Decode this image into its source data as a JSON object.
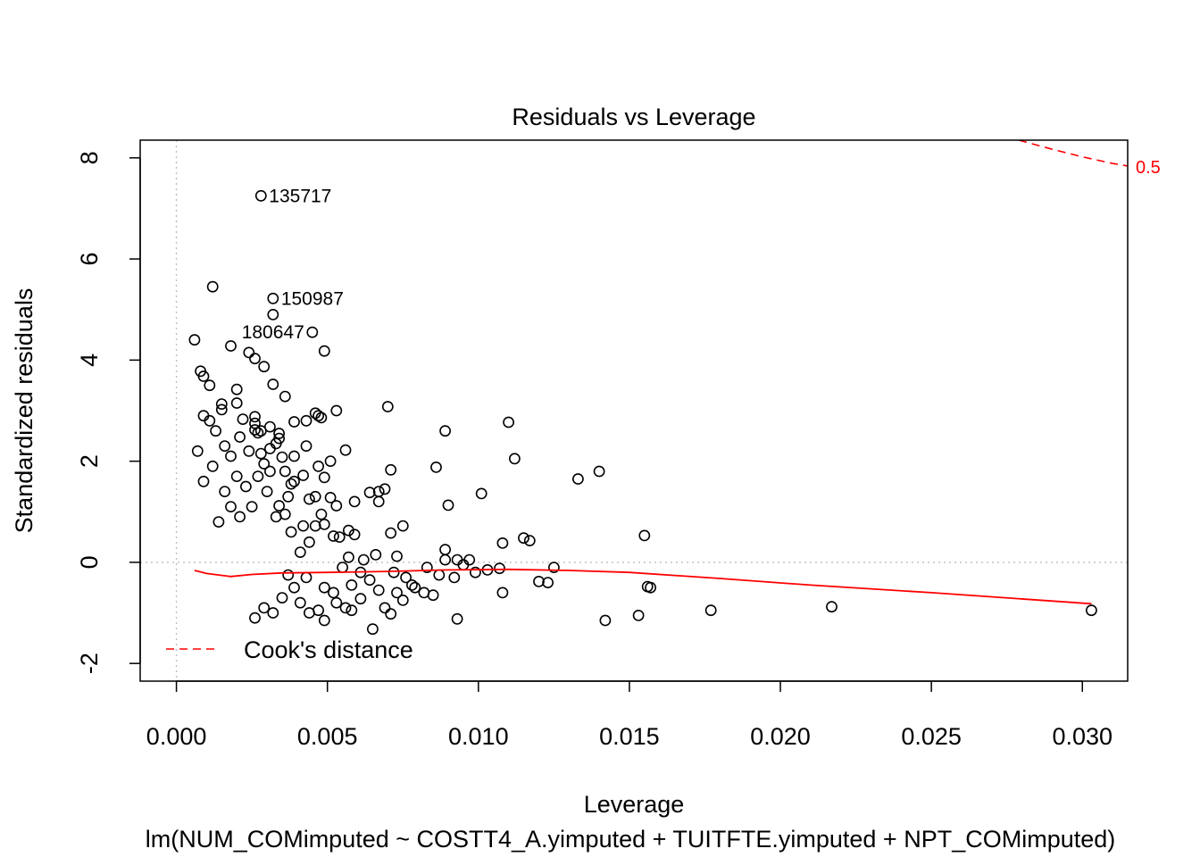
{
  "chart_data": {
    "type": "scatter",
    "title": "Residuals vs Leverage",
    "xlabel": "Leverage",
    "ylabel": "Standardized residuals",
    "subtitle": "lm(NUM_COMimputed ~ COSTT4_A.yimputed + TUITFTE.yimputed + NPT_COMimputed)",
    "xlim": [
      -0.0012,
      0.0315
    ],
    "ylim": [
      -2.35,
      8.35
    ],
    "x_ticks": [
      0.0,
      0.005,
      0.01,
      0.015,
      0.02,
      0.025,
      0.03
    ],
    "x_tick_labels": [
      "0.000",
      "0.005",
      "0.010",
      "0.015",
      "0.020",
      "0.025",
      "0.030"
    ],
    "y_ticks": [
      -2,
      0,
      2,
      4,
      6,
      8
    ],
    "y_tick_labels": [
      "-2",
      "0",
      "2",
      "4",
      "6",
      "8"
    ],
    "reference_lines": {
      "x": 0,
      "y": 0
    },
    "series": [
      {
        "name": "observations",
        "color": "#000000",
        "points": [
          [
            0.0028,
            7.25
          ],
          [
            0.0012,
            5.45
          ],
          [
            0.0032,
            5.22
          ],
          [
            0.0032,
            4.9
          ],
          [
            0.0045,
            4.55
          ],
          [
            0.0006,
            4.4
          ],
          [
            0.0018,
            4.28
          ],
          [
            0.0049,
            4.18
          ],
          [
            0.0024,
            4.15
          ],
          [
            0.0026,
            4.03
          ],
          [
            0.0029,
            3.87
          ],
          [
            0.0008,
            3.78
          ],
          [
            0.0009,
            3.68
          ],
          [
            0.0011,
            3.5
          ],
          [
            0.0032,
            3.52
          ],
          [
            0.0036,
            3.28
          ],
          [
            0.002,
            3.42
          ],
          [
            0.002,
            3.15
          ],
          [
            0.0015,
            3.13
          ],
          [
            0.0015,
            3.02
          ],
          [
            0.007,
            3.08
          ],
          [
            0.0053,
            3.0
          ],
          [
            0.0046,
            2.95
          ],
          [
            0.0047,
            2.9
          ],
          [
            0.0048,
            2.86
          ],
          [
            0.0043,
            2.8
          ],
          [
            0.0039,
            2.78
          ],
          [
            0.0031,
            2.68
          ],
          [
            0.0026,
            2.62
          ],
          [
            0.0027,
            2.56
          ],
          [
            0.0034,
            2.55
          ],
          [
            0.0021,
            2.48
          ],
          [
            0.0028,
            2.6
          ],
          [
            0.0026,
            2.75
          ],
          [
            0.0022,
            2.83
          ],
          [
            0.0026,
            2.88
          ],
          [
            0.011,
            2.77
          ],
          [
            0.0089,
            2.6
          ],
          [
            0.0112,
            2.05
          ],
          [
            0.0056,
            2.22
          ],
          [
            0.0033,
            2.35
          ],
          [
            0.0028,
            2.15
          ],
          [
            0.0035,
            2.08
          ],
          [
            0.0071,
            1.83
          ],
          [
            0.0086,
            1.88
          ],
          [
            0.0064,
            1.38
          ],
          [
            0.0067,
            1.4
          ],
          [
            0.0069,
            1.45
          ],
          [
            0.0101,
            1.36
          ],
          [
            0.0133,
            1.65
          ],
          [
            0.014,
            1.8
          ],
          [
            0.0049,
            1.68
          ],
          [
            0.0042,
            1.72
          ],
          [
            0.0036,
            1.8
          ],
          [
            0.0031,
            1.8
          ],
          [
            0.0038,
            1.55
          ],
          [
            0.0039,
            1.6
          ],
          [
            0.0046,
            1.3
          ],
          [
            0.0044,
            1.25
          ],
          [
            0.0051,
            1.28
          ],
          [
            0.0053,
            1.12
          ],
          [
            0.0059,
            1.2
          ],
          [
            0.0067,
            1.2
          ],
          [
            0.009,
            1.13
          ],
          [
            0.0048,
            0.95
          ],
          [
            0.0034,
            1.12
          ],
          [
            0.0036,
            0.95
          ],
          [
            0.0042,
            0.72
          ],
          [
            0.0046,
            0.72
          ],
          [
            0.0049,
            0.75
          ],
          [
            0.0057,
            0.63
          ],
          [
            0.0059,
            0.55
          ],
          [
            0.0052,
            0.52
          ],
          [
            0.0054,
            0.5
          ],
          [
            0.0071,
            0.58
          ],
          [
            0.0075,
            0.72
          ],
          [
            0.0057,
            0.1
          ],
          [
            0.0062,
            0.05
          ],
          [
            0.0066,
            0.15
          ],
          [
            0.0073,
            0.12
          ],
          [
            0.0089,
            0.25
          ],
          [
            0.0093,
            0.05
          ],
          [
            0.0095,
            -0.05
          ],
          [
            0.0089,
            0.05
          ],
          [
            0.0097,
            0.05
          ],
          [
            0.0107,
            -0.12
          ],
          [
            0.0108,
            0.38
          ],
          [
            0.0115,
            0.48
          ],
          [
            0.0117,
            0.43
          ],
          [
            0.0125,
            -0.1
          ],
          [
            0.0155,
            0.53
          ],
          [
            0.012,
            -0.38
          ],
          [
            0.0123,
            -0.4
          ],
          [
            0.0156,
            -0.48
          ],
          [
            0.0157,
            -0.5
          ],
          [
            0.0108,
            -0.6
          ],
          [
            0.0093,
            -1.12
          ],
          [
            0.0142,
            -1.15
          ],
          [
            0.0153,
            -1.05
          ],
          [
            0.0177,
            -0.95
          ],
          [
            0.0217,
            -0.88
          ],
          [
            0.0303,
            -0.95
          ],
          [
            0.0082,
            -0.6
          ],
          [
            0.0085,
            -0.65
          ],
          [
            0.0079,
            -0.5
          ],
          [
            0.0075,
            -0.75
          ],
          [
            0.0069,
            -0.9
          ],
          [
            0.0071,
            -1.02
          ],
          [
            0.0065,
            -1.32
          ],
          [
            0.0049,
            -1.15
          ],
          [
            0.0061,
            -0.72
          ],
          [
            0.0056,
            -0.9
          ],
          [
            0.0047,
            -0.95
          ],
          [
            0.0044,
            -1.0
          ],
          [
            0.0041,
            -0.8
          ],
          [
            0.0052,
            -0.6
          ],
          [
            0.0058,
            -0.45
          ],
          [
            0.0064,
            -0.35
          ],
          [
            0.0067,
            -0.55
          ],
          [
            0.0072,
            -0.2
          ],
          [
            0.0076,
            -0.3
          ],
          [
            0.0083,
            -0.1
          ],
          [
            0.0087,
            -0.25
          ],
          [
            0.0092,
            -0.3
          ],
          [
            0.0099,
            -0.2
          ],
          [
            0.0103,
            -0.15
          ],
          [
            0.0078,
            -0.45
          ],
          [
            0.0073,
            -0.6
          ],
          [
            0.0061,
            -0.2
          ],
          [
            0.0055,
            -0.1
          ],
          [
            0.0041,
            0.2
          ],
          [
            0.0044,
            0.4
          ],
          [
            0.0038,
            0.6
          ],
          [
            0.0033,
            0.9
          ],
          [
            0.0037,
            1.3
          ],
          [
            0.0047,
            1.9
          ],
          [
            0.0043,
            2.3
          ],
          [
            0.0051,
            2.0
          ],
          [
            0.0039,
            2.1
          ],
          [
            0.0034,
            2.45
          ],
          [
            0.0031,
            2.25
          ],
          [
            0.0029,
            1.95
          ],
          [
            0.0024,
            2.2
          ],
          [
            0.0018,
            2.1
          ],
          [
            0.0016,
            2.3
          ],
          [
            0.0013,
            2.6
          ],
          [
            0.0011,
            2.8
          ],
          [
            0.0009,
            2.9
          ],
          [
            0.0007,
            2.2
          ],
          [
            0.0009,
            1.6
          ],
          [
            0.0012,
            1.9
          ],
          [
            0.0016,
            1.4
          ],
          [
            0.002,
            1.7
          ],
          [
            0.0023,
            1.5
          ],
          [
            0.0027,
            1.7
          ],
          [
            0.003,
            1.4
          ],
          [
            0.0025,
            1.1
          ],
          [
            0.0021,
            0.9
          ],
          [
            0.0018,
            1.1
          ],
          [
            0.0014,
            0.8
          ],
          [
            0.0039,
            -0.5
          ],
          [
            0.0035,
            -0.7
          ],
          [
            0.0032,
            -1.0
          ],
          [
            0.0029,
            -0.9
          ],
          [
            0.0026,
            -1.1
          ],
          [
            0.0037,
            -0.25
          ],
          [
            0.0043,
            -0.3
          ],
          [
            0.0049,
            -0.5
          ],
          [
            0.0053,
            -0.8
          ],
          [
            0.0058,
            -0.95
          ]
        ]
      }
    ],
    "annotations": [
      {
        "text": "135717",
        "x": 0.0028,
        "y": 7.25,
        "pos": "right"
      },
      {
        "text": "150987",
        "x": 0.0032,
        "y": 5.22,
        "pos": "right"
      },
      {
        "text": "180647",
        "x": 0.0045,
        "y": 4.55,
        "pos": "left"
      }
    ],
    "smoother": {
      "color": "#ff0000",
      "x": [
        0.0006,
        0.001,
        0.0018,
        0.0025,
        0.0035,
        0.005,
        0.007,
        0.009,
        0.011,
        0.013,
        0.015,
        0.018,
        0.021,
        0.025,
        0.0303
      ],
      "y": [
        -0.16,
        -0.22,
        -0.28,
        -0.24,
        -0.21,
        -0.2,
        -0.18,
        -0.15,
        -0.14,
        -0.16,
        -0.2,
        -0.32,
        -0.45,
        -0.6,
        -0.82
      ]
    },
    "cooks_contour": {
      "label": "0.5",
      "color": "#ff0000",
      "x": [
        0.0279,
        0.029,
        0.03,
        0.031,
        0.0315
      ],
      "y": [
        8.35,
        8.17,
        8.02,
        7.89,
        7.84
      ]
    },
    "legend": {
      "label": "Cook's distance",
      "position": "bottom-left",
      "color": "#ff0000"
    },
    "colors": {
      "points": "#000000",
      "smoother": "#ff0000",
      "cooks": "#ff0000",
      "reference": "#bebebe"
    }
  }
}
